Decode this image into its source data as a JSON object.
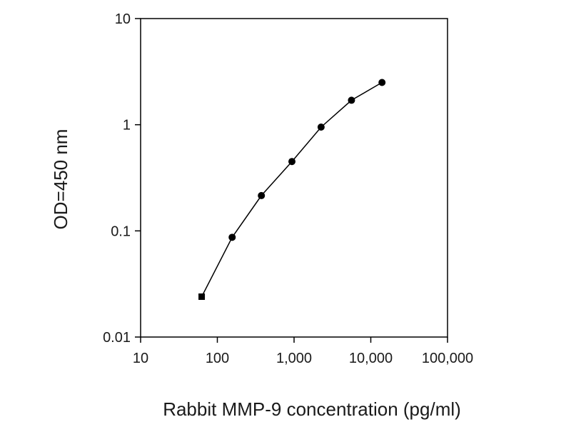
{
  "chart_data": {
    "type": "line",
    "title": "",
    "xlabel": "Rabbit MMP-9 concentration (pg/ml)",
    "ylabel": "OD=450 nm",
    "x_scale": "log",
    "y_scale": "log",
    "xlim": [
      10,
      100000
    ],
    "ylim": [
      0.01,
      10
    ],
    "x_ticks": [
      10,
      100,
      1000,
      10000,
      100000
    ],
    "x_tick_labels": [
      "10",
      "100",
      "1,000",
      "10,000",
      "100,000"
    ],
    "y_ticks": [
      0.01,
      0.1,
      1,
      10
    ],
    "y_tick_labels": [
      "0.01",
      "0.1",
      "1",
      "10"
    ],
    "grid": false,
    "legend": "none",
    "series": [
      {
        "color": "#000000",
        "marker": "filled-circle",
        "x": [
          62.5,
          156,
          375,
          938,
          2250,
          5600,
          14000
        ],
        "y": [
          0.024,
          0.087,
          0.215,
          0.45,
          0.95,
          1.7,
          2.5
        ]
      }
    ]
  }
}
